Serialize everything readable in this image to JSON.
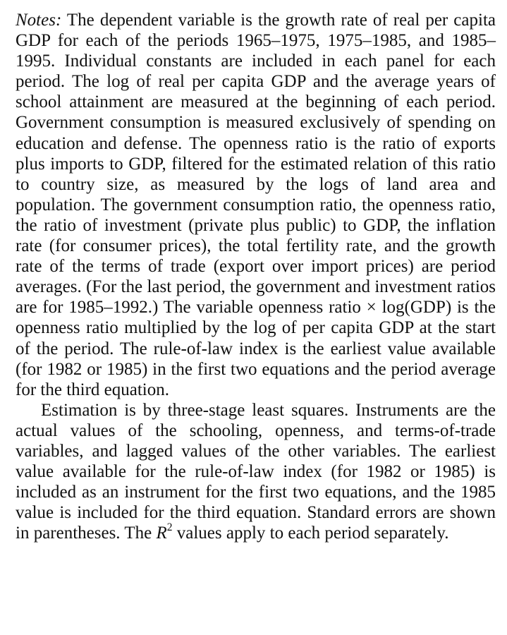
{
  "notes": {
    "lead": "Notes:",
    "p1": " The dependent variable is the growth rate of real per capita GDP for each of the periods 1965–1975, 1975–1985, and 1985–1995. Individual constants are included in each panel for each period. The log of real per capita GDP and the average years of school attainment are measured at the beginning of each period. Government consumption is measured exclusively of spending on education and defense. The openness ratio is the ratio of exports plus imports to GDP, filtered for the estimated relation of this ratio to country size, as measured by the logs of land area and population. The government consumption ratio, the openness ratio, the ratio of investment (private plus public) to GDP, the inflation rate (for consumer prices), the total fertility rate, and the growth rate of the terms of trade (export over import prices) are period averages. (For the last period, the government and investment ratios are for 1985–1992.) The variable openness ratio × log(GDP) is the openness ratio multiplied by the log of per capita GDP at the start of the period. The rule-of-law index is the earliest value available (for 1982 or 1985) in the first two equations and the period average for the third equation.",
    "p2_a": "Estimation is by three-stage least squares. Instruments are the actual values of the schooling, openness, and terms-of-trade variables, and lagged values of the other variables. The earliest value available for the rule-of-law index (for 1982 or 1985) is included as an instrument for the first two equations, and the 1985 value is included for the third equation. Standard errors are shown in parentheses. The ",
    "p2_r": "R",
    "p2_sup": "2",
    "p2_b": " values apply to each period separately."
  }
}
